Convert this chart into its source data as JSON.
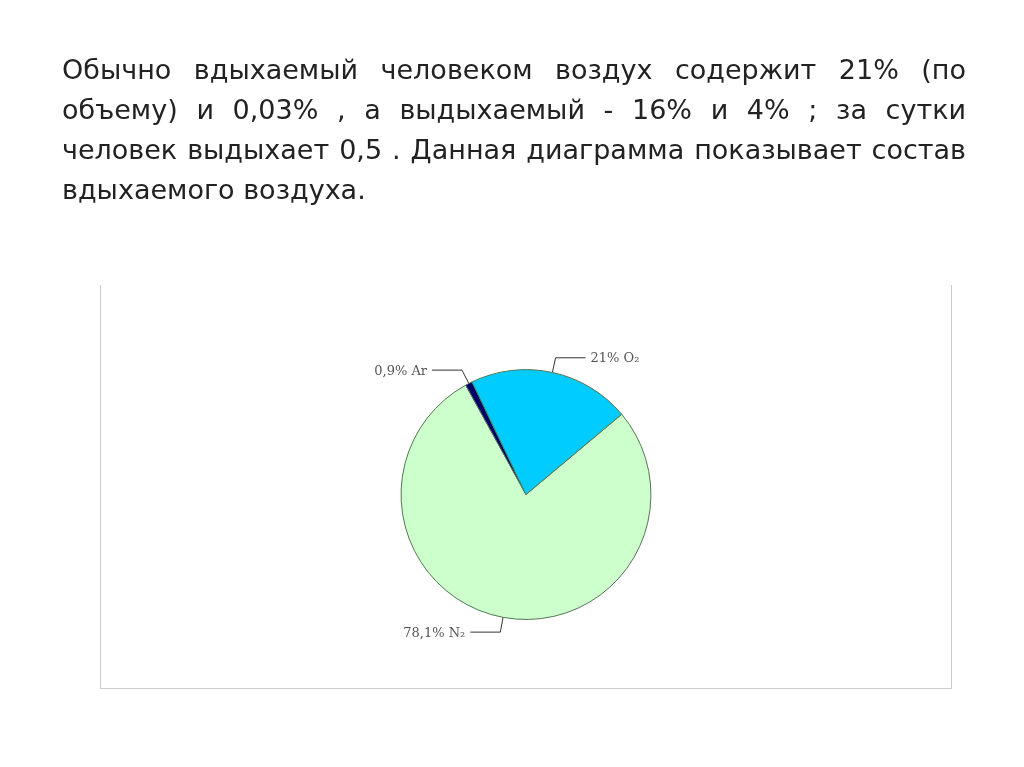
{
  "chart_data": {
    "type": "pie",
    "title": "Обычно вдыхаемый человеком воздух содержит 21% (по объему) и 0,03% , а выдыхаемый - 16% и 4% ; за сутки человек выдыхает 0,5 . Данная диаграмма показывает состав вдыхаемого воздуха.",
    "categories": [
      "N₂",
      "Ar",
      "O₂"
    ],
    "values": [
      78.1,
      0.9,
      21
    ],
    "value_labels": [
      "78,1%",
      "0,9%",
      "21%"
    ],
    "colors": [
      "#ccffcc",
      "#000066",
      "#00ccff"
    ],
    "legend": false
  }
}
